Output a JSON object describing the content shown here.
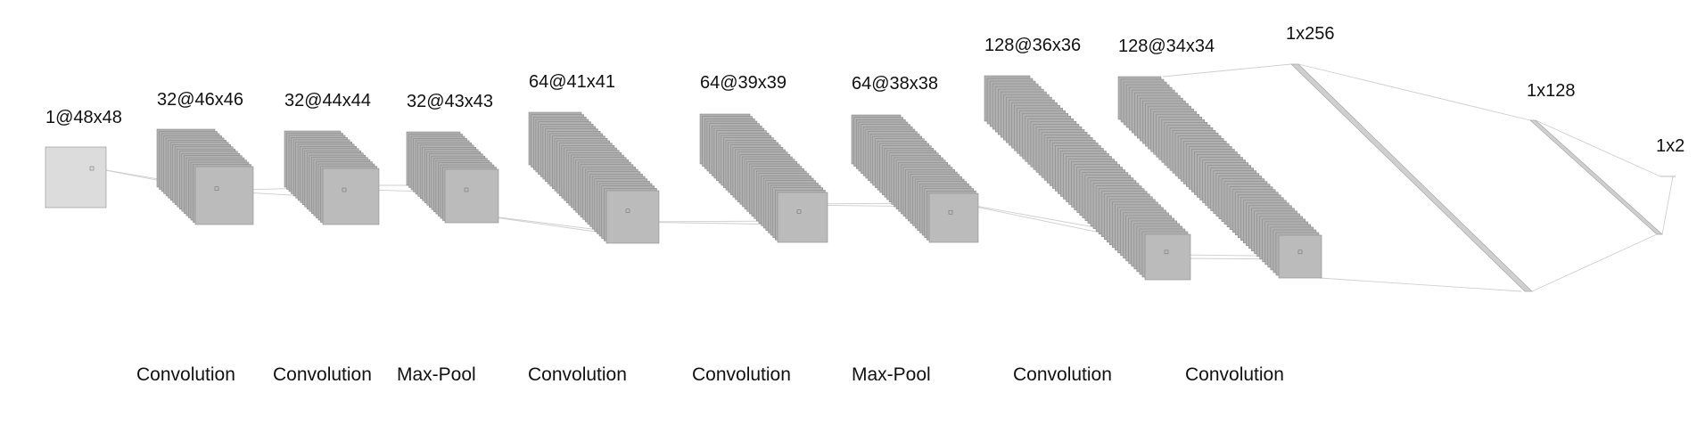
{
  "colors": {
    "layer_fill": "#bbbbbb",
    "layer_fill_input": "#dcdcdc",
    "layer_edge": "#8c8c8c",
    "connector": "#cfcfcf",
    "text": "#111111"
  },
  "layers": [
    {
      "id": "input",
      "label": "1@48x48"
    },
    {
      "id": "conv1",
      "label": "32@46x46"
    },
    {
      "id": "conv2",
      "label": "32@44x44"
    },
    {
      "id": "pool1",
      "label": "32@43x43"
    },
    {
      "id": "conv3",
      "label": "64@41x41"
    },
    {
      "id": "conv4",
      "label": "64@39x39"
    },
    {
      "id": "pool2",
      "label": "64@38x38"
    },
    {
      "id": "conv5",
      "label": "128@36x36"
    },
    {
      "id": "conv6",
      "label": "128@34x34"
    },
    {
      "id": "dense1",
      "label": "1x256"
    },
    {
      "id": "dense2",
      "label": "1x128"
    },
    {
      "id": "output",
      "label": "1x2"
    }
  ],
  "operations": [
    {
      "id": "op1",
      "label": "Convolution"
    },
    {
      "id": "op2",
      "label": "Convolution"
    },
    {
      "id": "op3",
      "label": "Max-Pool"
    },
    {
      "id": "op4",
      "label": "Convolution"
    },
    {
      "id": "op5",
      "label": "Convolution"
    },
    {
      "id": "op6",
      "label": "Max-Pool"
    },
    {
      "id": "op7",
      "label": "Convolution"
    },
    {
      "id": "op8",
      "label": "Convolution"
    }
  ]
}
